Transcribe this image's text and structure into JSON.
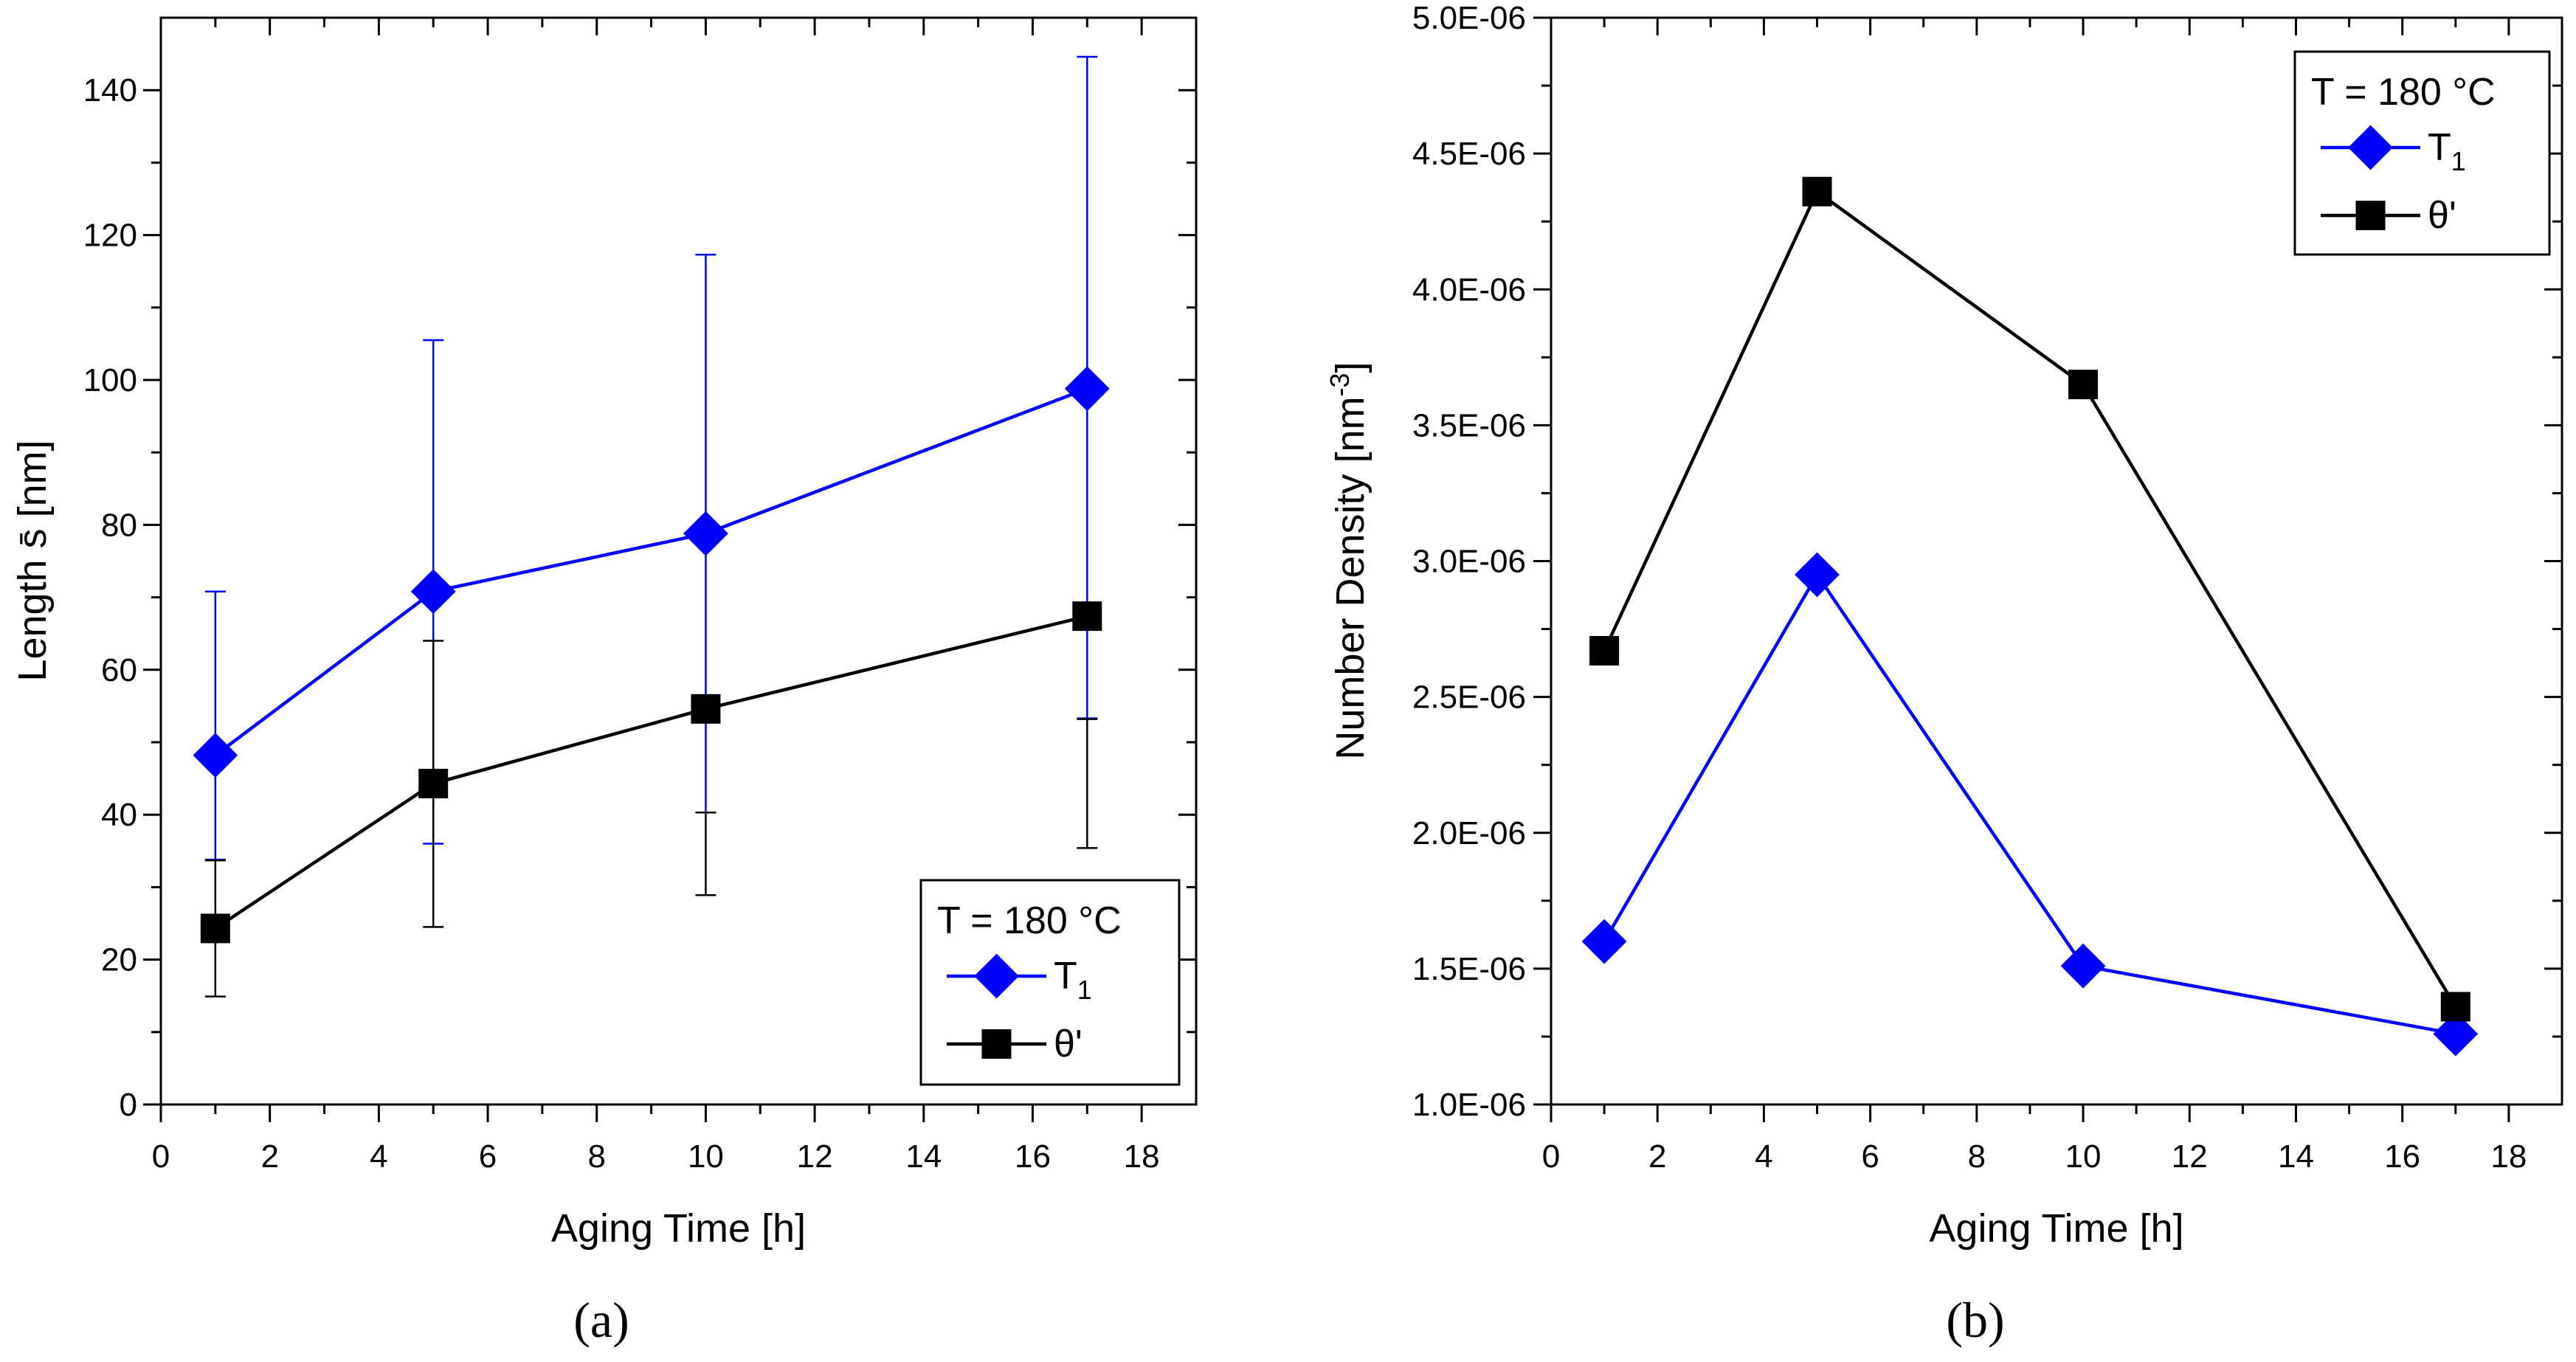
{
  "chart_data": [
    {
      "type": "line",
      "panel_label": "(a)",
      "title": "",
      "xlabel": "Aging Time [h]",
      "ylabel": "Length s̄ [nm]",
      "xlim": [
        0,
        19
      ],
      "ylim": [
        0,
        150
      ],
      "xticks": [
        0,
        2,
        4,
        6,
        8,
        10,
        12,
        14,
        16,
        18
      ],
      "yticks": [
        0,
        20,
        40,
        60,
        80,
        100,
        120,
        140
      ],
      "ytick_labels": [
        "0",
        "20",
        "40",
        "60",
        "80",
        "100",
        "120",
        "140"
      ],
      "legend": {
        "title": "T = 180 °C",
        "position": "bottom-right"
      },
      "series": [
        {
          "name": "T1",
          "name_main": "T",
          "name_sub": "1",
          "color": "#0000ff",
          "marker": "diamond",
          "x": [
            1,
            5,
            10,
            17
          ],
          "values": [
            48.2,
            70.8,
            78.8,
            98.8
          ],
          "err_low": [
            33.8,
            36.0,
            40.3,
            53.3
          ],
          "err_high": [
            70.8,
            105.5,
            117.3,
            144.6
          ]
        },
        {
          "name": "θ'",
          "name_main": "θ'",
          "name_sub": "",
          "color": "#000000",
          "marker": "square",
          "x": [
            1,
            5,
            10,
            17
          ],
          "values": [
            24.3,
            44.3,
            54.6,
            67.4
          ],
          "err_low": [
            14.9,
            24.5,
            28.9,
            35.4
          ],
          "err_high": [
            33.7,
            64.0,
            40.3,
            53.2
          ]
        }
      ]
    },
    {
      "type": "line",
      "panel_label": "(b)",
      "title": "",
      "xlabel": "Aging Time [h]",
      "ylabel": "Number Density [nm",
      "ylabel_sup": "-3",
      "ylabel_end": "]",
      "xlim": [
        0,
        19
      ],
      "ylim": [
        1e-06,
        5e-06
      ],
      "xticks": [
        0,
        2,
        4,
        6,
        8,
        10,
        12,
        14,
        16,
        18
      ],
      "yticks": [
        1e-06,
        1.5e-06,
        2e-06,
        2.5e-06,
        3e-06,
        3.5e-06,
        4e-06,
        4.5e-06,
        5e-06
      ],
      "ytick_labels": [
        "1.0E-06",
        "1.5E-06",
        "2.0E-06",
        "2.5E-06",
        "3.0E-06",
        "3.5E-06",
        "4.0E-06",
        "4.5E-06",
        "5.0E-06"
      ],
      "legend": {
        "title": "T = 180 °C",
        "position": "top-right"
      },
      "series": [
        {
          "name": "T1",
          "name_main": "T",
          "name_sub": "1",
          "color": "#0000ff",
          "marker": "diamond",
          "x": [
            1,
            5,
            10,
            17
          ],
          "values": [
            1.6e-06,
            2.95e-06,
            1.51e-06,
            1.26e-06
          ]
        },
        {
          "name": "θ'",
          "name_main": "θ'",
          "name_sub": "",
          "color": "#000000",
          "marker": "square",
          "x": [
            1,
            5,
            10,
            17
          ],
          "values": [
            2.67e-06,
            4.36e-06,
            3.65e-06,
            1.36e-06
          ]
        }
      ]
    }
  ]
}
